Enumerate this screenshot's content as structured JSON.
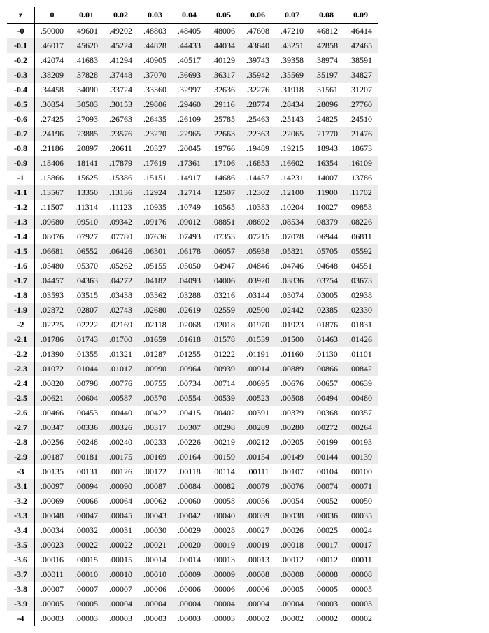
{
  "table": {
    "type": "table",
    "header_label": "z",
    "columns": [
      "0",
      "0.01",
      "0.02",
      "0.03",
      "0.04",
      "0.05",
      "0.06",
      "0.07",
      "0.08",
      "0.09"
    ],
    "row_headers": [
      "-0",
      "-0.1",
      "-0.2",
      "-0.3",
      "-0.4",
      "-0.5",
      "-0.6",
      "-0.7",
      "-0.8",
      "-0.9",
      "-1",
      "-1.1",
      "-1.2",
      "-1.3",
      "-1.4",
      "-1.5",
      "-1.6",
      "-1.7",
      "-1.8",
      "-1.9",
      "-2",
      "-2.1",
      "-2.2",
      "-2.3",
      "-2.4",
      "-2.5",
      "-2.6",
      "-2.7",
      "-2.8",
      "-2.9",
      "-3",
      "-3.1",
      "-3.2",
      "-3.3",
      "-3.4",
      "-3.5",
      "-3.6",
      "-3.7",
      "-3.8",
      "-3.9",
      "-4"
    ],
    "rows": [
      [
        ".50000",
        ".49601",
        ".49202",
        ".48803",
        ".48405",
        ".48006",
        ".47608",
        ".47210",
        ".46812",
        ".46414"
      ],
      [
        ".46017",
        ".45620",
        ".45224",
        ".44828",
        ".44433",
        ".44034",
        ".43640",
        ".43251",
        ".42858",
        ".42465"
      ],
      [
        ".42074",
        ".41683",
        ".41294",
        ".40905",
        ".40517",
        ".40129",
        ".39743",
        ".39358",
        ".38974",
        ".38591"
      ],
      [
        ".38209",
        ".37828",
        ".37448",
        ".37070",
        ".36693",
        ".36317",
        ".35942",
        ".35569",
        ".35197",
        ".34827"
      ],
      [
        ".34458",
        ".34090",
        ".33724",
        ".33360",
        ".32997",
        ".32636",
        ".32276",
        ".31918",
        ".31561",
        ".31207"
      ],
      [
        ".30854",
        ".30503",
        ".30153",
        ".29806",
        ".29460",
        ".29116",
        ".28774",
        ".28434",
        ".28096",
        ".27760"
      ],
      [
        ".27425",
        ".27093",
        ".26763",
        ".26435",
        ".26109",
        ".25785",
        ".25463",
        ".25143",
        ".24825",
        ".24510"
      ],
      [
        ".24196",
        ".23885",
        ".23576",
        ".23270",
        ".22965",
        ".22663",
        ".22363",
        ".22065",
        ".21770",
        ".21476"
      ],
      [
        ".21186",
        ".20897",
        ".20611",
        ".20327",
        ".20045",
        ".19766",
        ".19489",
        ".19215",
        ".18943",
        ".18673"
      ],
      [
        ".18406",
        ".18141",
        ".17879",
        ".17619",
        ".17361",
        ".17106",
        ".16853",
        ".16602",
        ".16354",
        ".16109"
      ],
      [
        ".15866",
        ".15625",
        ".15386",
        ".15151",
        ".14917",
        ".14686",
        ".14457",
        ".14231",
        ".14007",
        ".13786"
      ],
      [
        ".13567",
        ".13350",
        ".13136",
        ".12924",
        ".12714",
        ".12507",
        ".12302",
        ".12100",
        ".11900",
        ".11702"
      ],
      [
        ".11507",
        ".11314",
        ".11123",
        ".10935",
        ".10749",
        ".10565",
        ".10383",
        ".10204",
        ".10027",
        ".09853"
      ],
      [
        ".09680",
        ".09510",
        ".09342",
        ".09176",
        ".09012",
        ".08851",
        ".08692",
        ".08534",
        ".08379",
        ".08226"
      ],
      [
        ".08076",
        ".07927",
        ".07780",
        ".07636",
        ".07493",
        ".07353",
        ".07215",
        ".07078",
        ".06944",
        ".06811"
      ],
      [
        ".06681",
        ".06552",
        ".06426",
        ".06301",
        ".06178",
        ".06057",
        ".05938",
        ".05821",
        ".05705",
        ".05592"
      ],
      [
        ".05480",
        ".05370",
        ".05262",
        ".05155",
        ".05050",
        ".04947",
        ".04846",
        ".04746",
        ".04648",
        ".04551"
      ],
      [
        ".04457",
        ".04363",
        ".04272",
        ".04182",
        ".04093",
        ".04006",
        ".03920",
        ".03836",
        ".03754",
        ".03673"
      ],
      [
        ".03593",
        ".03515",
        ".03438",
        ".03362",
        ".03288",
        ".03216",
        ".03144",
        ".03074",
        ".03005",
        ".02938"
      ],
      [
        ".02872",
        ".02807",
        ".02743",
        ".02680",
        ".02619",
        ".02559",
        ".02500",
        ".02442",
        ".02385",
        ".02330"
      ],
      [
        ".02275",
        ".02222",
        ".02169",
        ".02118",
        ".02068",
        ".02018",
        ".01970",
        ".01923",
        ".01876",
        ".01831"
      ],
      [
        ".01786",
        ".01743",
        ".01700",
        ".01659",
        ".01618",
        ".01578",
        ".01539",
        ".01500",
        ".01463",
        ".01426"
      ],
      [
        ".01390",
        ".01355",
        ".01321",
        ".01287",
        ".01255",
        ".01222",
        ".01191",
        ".01160",
        ".01130",
        ".01101"
      ],
      [
        ".01072",
        ".01044",
        ".01017",
        ".00990",
        ".00964",
        ".00939",
        ".00914",
        ".00889",
        ".00866",
        ".00842"
      ],
      [
        ".00820",
        ".00798",
        ".00776",
        ".00755",
        ".00734",
        ".00714",
        ".00695",
        ".00676",
        ".00657",
        ".00639"
      ],
      [
        ".00621",
        ".00604",
        ".00587",
        ".00570",
        ".00554",
        ".00539",
        ".00523",
        ".00508",
        ".00494",
        ".00480"
      ],
      [
        ".00466",
        ".00453",
        ".00440",
        ".00427",
        ".00415",
        ".00402",
        ".00391",
        ".00379",
        ".00368",
        ".00357"
      ],
      [
        ".00347",
        ".00336",
        ".00326",
        ".00317",
        ".00307",
        ".00298",
        ".00289",
        ".00280",
        ".00272",
        ".00264"
      ],
      [
        ".00256",
        ".00248",
        ".00240",
        ".00233",
        ".00226",
        ".00219",
        ".00212",
        ".00205",
        ".00199",
        ".00193"
      ],
      [
        ".00187",
        ".00181",
        ".00175",
        ".00169",
        ".00164",
        ".00159",
        ".00154",
        ".00149",
        ".00144",
        ".00139"
      ],
      [
        ".00135",
        ".00131",
        ".00126",
        ".00122",
        ".00118",
        ".00114",
        ".00111",
        ".00107",
        ".00104",
        ".00100"
      ],
      [
        ".00097",
        ".00094",
        ".00090",
        ".00087",
        ".00084",
        ".00082",
        ".00079",
        ".00076",
        ".00074",
        ".00071"
      ],
      [
        ".00069",
        ".00066",
        ".00064",
        ".00062",
        ".00060",
        ".00058",
        ".00056",
        ".00054",
        ".00052",
        ".00050"
      ],
      [
        ".00048",
        ".00047",
        ".00045",
        ".00043",
        ".00042",
        ".00040",
        ".00039",
        ".00038",
        ".00036",
        ".00035"
      ],
      [
        ".00034",
        ".00032",
        ".00031",
        ".00030",
        ".00029",
        ".00028",
        ".00027",
        ".00026",
        ".00025",
        ".00024"
      ],
      [
        ".00023",
        ".00022",
        ".00022",
        ".00021",
        ".00020",
        ".00019",
        ".00019",
        ".00018",
        ".00017",
        ".00017"
      ],
      [
        ".00016",
        ".00015",
        ".00015",
        ".00014",
        ".00014",
        ".00013",
        ".00013",
        ".00012",
        ".00012",
        ".00011"
      ],
      [
        ".00011",
        ".00010",
        ".00010",
        ".00010",
        ".00009",
        ".00009",
        ".00008",
        ".00008",
        ".00008",
        ".00008"
      ],
      [
        ".00007",
        ".00007",
        ".00007",
        ".00006",
        ".00006",
        ".00006",
        ".00006",
        ".00005",
        ".00005",
        ".00005"
      ],
      [
        ".00005",
        ".00005",
        ".00004",
        ".00004",
        ".00004",
        ".00004",
        ".00004",
        ".00004",
        ".00003",
        ".00003"
      ],
      [
        ".00003",
        ".00003",
        ".00003",
        ".00003",
        ".00003",
        ".00003",
        ".00002",
        ".00002",
        ".00002",
        ".00002"
      ]
    ],
    "shaded_row_color": "#ebebeb",
    "background_color": "#ffffff",
    "text_color": "#000000",
    "font_family": "Georgia, Times New Roman, serif",
    "font_size": 12,
    "header_font_weight": "bold",
    "border_color": "#000000"
  }
}
